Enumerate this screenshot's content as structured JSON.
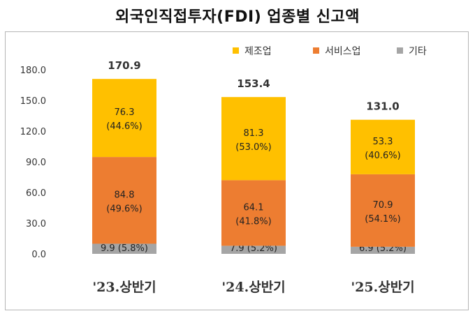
{
  "title": "외국인직접투자(FDI) 업종별 신고액",
  "chart_data": {
    "type": "bar",
    "stacked": true,
    "categories": [
      "'23.상반기",
      "'24.상반기",
      "'25.상반기"
    ],
    "series": [
      {
        "name": "기타",
        "color": "#a5a5a5",
        "values": [
          9.9,
          7.9,
          6.9
        ],
        "labels": [
          "9.9 (5.8%)",
          "7.9 (5.2%)",
          "6.9 (5.2%)"
        ]
      },
      {
        "name": "서비스업",
        "color": "#ed7d31",
        "values": [
          84.8,
          64.1,
          70.9
        ],
        "labels": [
          [
            "84.8",
            "(49.6%)"
          ],
          [
            "64.1",
            "(41.8%)"
          ],
          [
            "70.9",
            "(54.1%)"
          ]
        ]
      },
      {
        "name": "제조업",
        "color": "#ffc000",
        "values": [
          76.3,
          81.3,
          53.3
        ],
        "labels": [
          [
            "76.3",
            "(44.6%)"
          ],
          [
            "81.3",
            "(53.0%)"
          ],
          [
            "53.3",
            "(40.6%)"
          ]
        ]
      }
    ],
    "totals": [
      "170.9",
      "153.4",
      "131.0"
    ],
    "legend": [
      "제조업",
      "서비스업",
      "기타"
    ],
    "legend_position": "top-right",
    "yticks": [
      "0.0",
      "30.0",
      "60.0",
      "90.0",
      "120.0",
      "150.0",
      "180.0"
    ],
    "ylim": [
      0,
      180
    ],
    "grid": false
  }
}
